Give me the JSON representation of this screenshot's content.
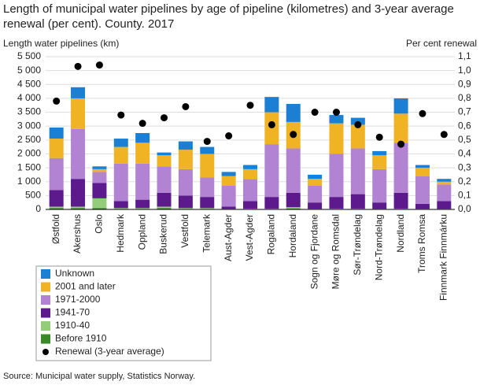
{
  "chart_data": {
    "type": "bar",
    "stacked": true,
    "title": "Length of municipal water pipelines by age of pipeline (kilometres) and 3-year average renewal (per cent). County. 2017",
    "ylabel": "Length water pipelines  (km)",
    "y2label": "Per cent  renewal",
    "source": "Source: Municipal water supply, Statistics Norway.",
    "categories": [
      "Østfold",
      "Akershus",
      "Oslo",
      "Hedmark",
      "Oppland",
      "Buskerud",
      "Vestfold",
      "Telemark",
      "Aust-Agder",
      "Vest-Agder",
      "Rogaland",
      "Hordaland",
      "Sogn og Fjordane",
      "Møre og Romsdal",
      "Sør-Trøndelag",
      "Nord-Trøndelag",
      "Nordland",
      "Troms Romsa",
      "Finnmark Finnmárku"
    ],
    "series": [
      {
        "name": "Before 1910",
        "color": "#3a8a2a",
        "values": [
          50,
          50,
          50,
          20,
          20,
          50,
          20,
          20,
          10,
          10,
          10,
          30,
          10,
          10,
          10,
          10,
          10,
          10,
          10
        ]
      },
      {
        "name": "1910-40",
        "color": "#93cc7a",
        "values": [
          50,
          50,
          350,
          30,
          30,
          50,
          30,
          30,
          10,
          20,
          20,
          50,
          10,
          20,
          20,
          10,
          20,
          10,
          10
        ]
      },
      {
        "name": "1941-70",
        "color": "#5c1a8c",
        "values": [
          600,
          1000,
          550,
          250,
          300,
          500,
          450,
          400,
          80,
          270,
          420,
          520,
          230,
          420,
          520,
          230,
          570,
          180,
          280
        ]
      },
      {
        "name": "1971-2000",
        "color": "#b283d3",
        "values": [
          1150,
          1800,
          400,
          1350,
          1300,
          950,
          950,
          700,
          750,
          800,
          1900,
          1600,
          600,
          1550,
          1650,
          1200,
          1800,
          1000,
          600
        ]
      },
      {
        "name": "2001 and later",
        "color": "#f0b323",
        "values": [
          700,
          1100,
          100,
          600,
          750,
          400,
          700,
          850,
          350,
          350,
          1150,
          950,
          250,
          1100,
          850,
          500,
          1050,
          300,
          100
        ]
      },
      {
        "name": "Unknown",
        "color": "#1b7fd3",
        "values": [
          400,
          400,
          100,
          300,
          350,
          100,
          300,
          250,
          150,
          150,
          550,
          650,
          150,
          300,
          250,
          150,
          550,
          100,
          100
        ]
      },
      {
        "name": "Renewal (3-year average)",
        "type": "scatter",
        "axis": "y2",
        "color": "#000000",
        "values": [
          0.78,
          1.03,
          1.04,
          0.68,
          0.62,
          0.66,
          0.74,
          0.49,
          0.53,
          0.75,
          0.61,
          0.54,
          0.7,
          0.7,
          0.61,
          0.52,
          0.47,
          0.69,
          0.54
        ]
      }
    ],
    "ylim": [
      0,
      5500
    ],
    "yticks": [
      0,
      {
        "value": 500,
        "label": "500"
      },
      {
        "value": 1000,
        "label": "1 000"
      },
      {
        "value": 1500,
        "label": "1 500"
      },
      {
        "value": 2000,
        "label": "2 000"
      },
      {
        "value": 2500,
        "label": "2 500"
      },
      {
        "value": 3000,
        "label": "3 000"
      },
      {
        "value": 3500,
        "label": "3 500"
      },
      {
        "value": 4000,
        "label": "4 000"
      },
      {
        "value": 4500,
        "label": "4 500"
      },
      {
        "value": 5000,
        "label": "5 000"
      },
      {
        "value": 5500,
        "label": "5 500"
      }
    ],
    "y2lim": [
      0,
      1.1
    ],
    "y2ticks": [
      {
        "value": 0,
        "label": "0,0"
      },
      {
        "value": 0.1,
        "label": "0,1"
      },
      {
        "value": 0.2,
        "label": "0,2"
      },
      {
        "value": 0.3,
        "label": "0,3"
      },
      {
        "value": 0.4,
        "label": "0,4"
      },
      {
        "value": 0.5,
        "label": "0,5"
      },
      {
        "value": 0.6,
        "label": "0,6"
      },
      {
        "value": 0.7,
        "label": "0,7"
      },
      {
        "value": 0.8,
        "label": "0,8"
      },
      {
        "value": 0.9,
        "label": "0,9"
      },
      {
        "value": 1.0,
        "label": "1,0"
      },
      {
        "value": 1.1,
        "label": "1,1"
      }
    ],
    "grid": true,
    "legend": "bottom-left"
  }
}
